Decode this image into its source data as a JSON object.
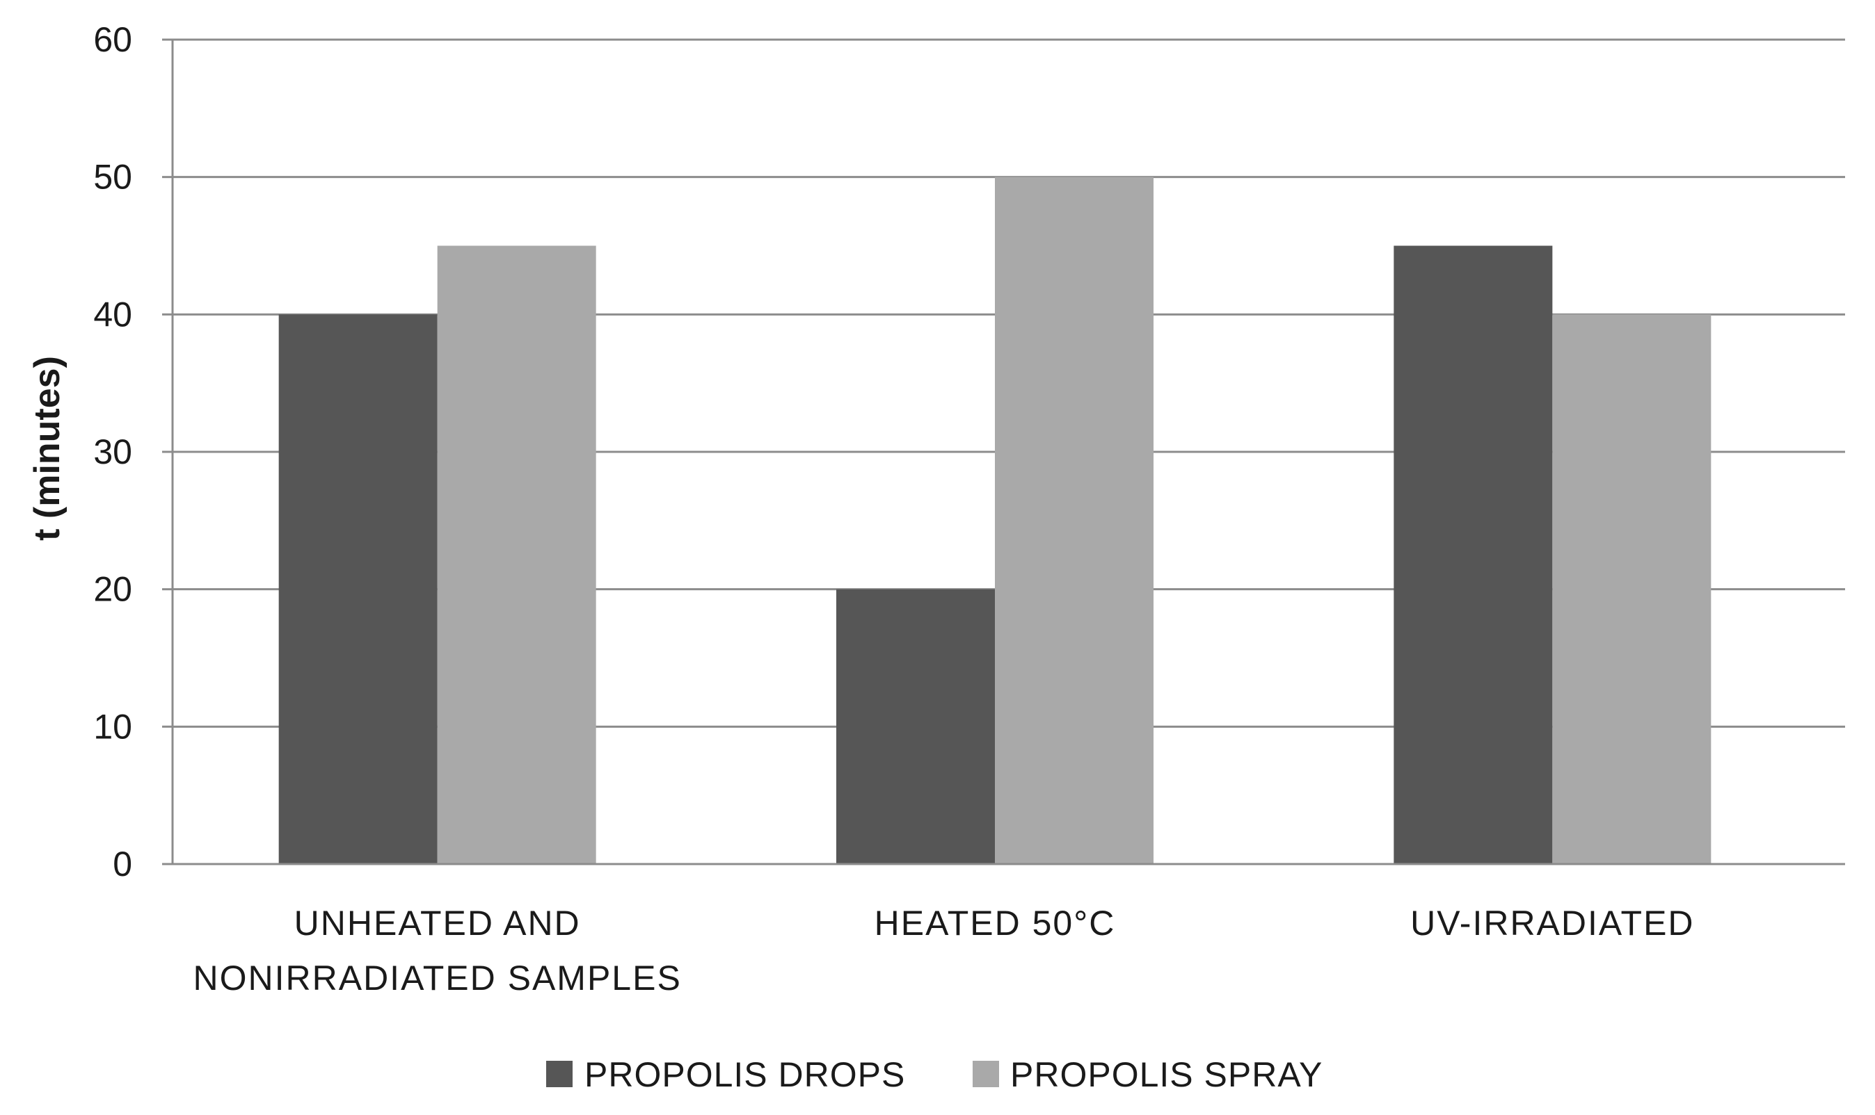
{
  "chart_data": {
    "type": "bar",
    "ylabel": "t (minutes)",
    "xlabel": "",
    "ylim": [
      0,
      60
    ],
    "yticks": [
      0,
      10,
      20,
      30,
      40,
      50,
      60
    ],
    "grid": true,
    "legend_position": "bottom",
    "categories": [
      [
        "UNHEATED AND",
        "NONIRRADIATED SAMPLES"
      ],
      [
        "HEATED 50°C"
      ],
      [
        "UV-IRRADIATED"
      ]
    ],
    "series": [
      {
        "name": "PROPOLIS DROPS",
        "color": "#565656",
        "values": [
          40,
          20,
          45
        ]
      },
      {
        "name": "PROPOLIS SPRAY",
        "color": "#a9a9a9",
        "values": [
          45,
          50,
          40
        ]
      }
    ]
  }
}
